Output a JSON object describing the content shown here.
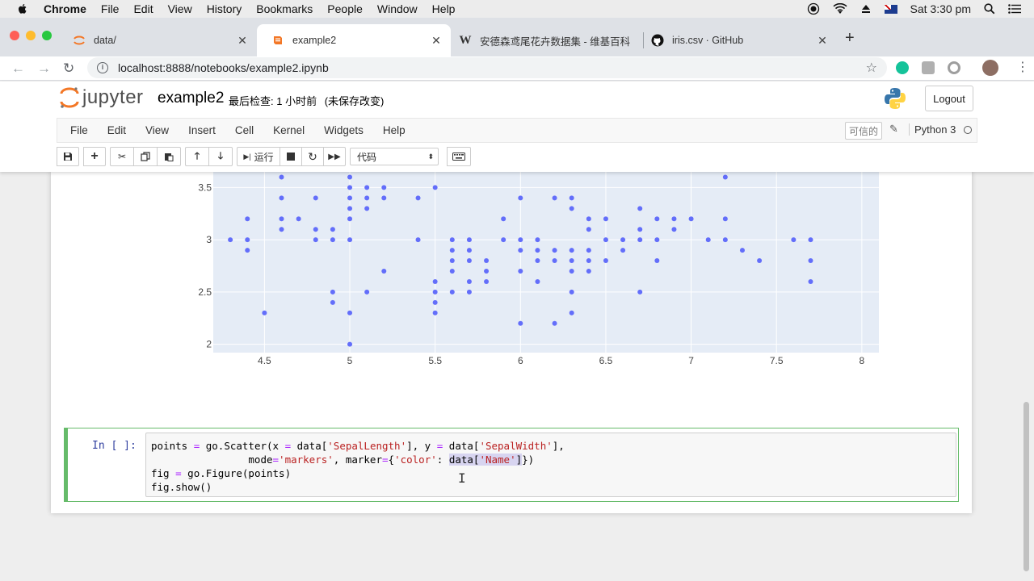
{
  "menubar": {
    "app": "Chrome",
    "items": [
      "File",
      "Edit",
      "View",
      "History",
      "Bookmarks",
      "People",
      "Window",
      "Help"
    ],
    "clock": "Sat 3:30 pm"
  },
  "tabs": [
    {
      "label": "data/",
      "icon": "jupyter-icon"
    },
    {
      "label": "example2",
      "icon": "notebook-icon",
      "active": true
    },
    {
      "label": "安德森鸢尾花卉数据集 - 维基百科",
      "icon": "wikipedia-icon"
    },
    {
      "label": "iris.csv · GitHub",
      "icon": "github-icon"
    }
  ],
  "address": {
    "url": "localhost:8888/notebooks/example2.ipynb"
  },
  "jupyter": {
    "logo_text": "jupyter",
    "notebook_name": "example2",
    "checkpoint": "最后检查: 1 小时前",
    "unsaved": "(未保存改变)",
    "logout": "Logout",
    "menu": [
      "File",
      "Edit",
      "View",
      "Insert",
      "Cell",
      "Kernel",
      "Widgets",
      "Help"
    ],
    "trusted": "可信的",
    "kernel": "Python 3",
    "run_label": "运行",
    "cell_type": "代码"
  },
  "chart_data": {
    "type": "scatter",
    "title": "",
    "xlabel": "",
    "ylabel": "",
    "xlim": [
      4.2,
      8.1
    ],
    "ylim": [
      1.92,
      3.65
    ],
    "x_ticks": [
      "4.5",
      "5",
      "5.5",
      "6",
      "6.5",
      "7",
      "7.5",
      "8"
    ],
    "y_ticks": [
      "2",
      "2.5",
      "3",
      "3.5"
    ],
    "x_tick_values": [
      4.5,
      5,
      5.5,
      6,
      6.5,
      7,
      7.5,
      8
    ],
    "y_tick_values": [
      2,
      2.5,
      3,
      3.5
    ],
    "grid": true,
    "marker_color": "#636efa",
    "points": [
      [
        4.3,
        3.0
      ],
      [
        4.4,
        3.2
      ],
      [
        4.4,
        3.0
      ],
      [
        4.4,
        2.9
      ],
      [
        4.5,
        2.3
      ],
      [
        4.6,
        3.6
      ],
      [
        4.6,
        3.4
      ],
      [
        4.6,
        3.2
      ],
      [
        4.6,
        3.1
      ],
      [
        4.7,
        3.2
      ],
      [
        4.8,
        3.4
      ],
      [
        4.8,
        3.1
      ],
      [
        4.8,
        3.0
      ],
      [
        4.9,
        3.1
      ],
      [
        4.9,
        3.0
      ],
      [
        4.9,
        2.5
      ],
      [
        4.9,
        2.4
      ],
      [
        5.0,
        3.6
      ],
      [
        5.0,
        3.5
      ],
      [
        5.0,
        3.4
      ],
      [
        5.0,
        3.3
      ],
      [
        5.0,
        3.2
      ],
      [
        5.0,
        3.0
      ],
      [
        5.0,
        2.3
      ],
      [
        5.0,
        2.0
      ],
      [
        5.1,
        3.5
      ],
      [
        5.1,
        3.4
      ],
      [
        5.1,
        3.3
      ],
      [
        5.1,
        2.5
      ],
      [
        5.2,
        3.5
      ],
      [
        5.2,
        3.4
      ],
      [
        5.2,
        2.7
      ],
      [
        5.4,
        3.4
      ],
      [
        5.4,
        3.0
      ],
      [
        5.5,
        3.5
      ],
      [
        5.5,
        2.6
      ],
      [
        5.5,
        2.5
      ],
      [
        5.5,
        2.4
      ],
      [
        5.5,
        2.3
      ],
      [
        5.6,
        3.0
      ],
      [
        5.6,
        2.9
      ],
      [
        5.6,
        2.8
      ],
      [
        5.6,
        2.7
      ],
      [
        5.6,
        2.5
      ],
      [
        5.7,
        3.0
      ],
      [
        5.7,
        2.9
      ],
      [
        5.7,
        2.8
      ],
      [
        5.7,
        2.6
      ],
      [
        5.7,
        2.5
      ],
      [
        5.8,
        2.8
      ],
      [
        5.8,
        2.7
      ],
      [
        5.8,
        2.6
      ],
      [
        5.9,
        3.2
      ],
      [
        5.9,
        3.0
      ],
      [
        6.0,
        3.4
      ],
      [
        6.0,
        3.0
      ],
      [
        6.0,
        2.9
      ],
      [
        6.0,
        2.7
      ],
      [
        6.0,
        2.2
      ],
      [
        6.1,
        3.0
      ],
      [
        6.1,
        2.9
      ],
      [
        6.1,
        2.8
      ],
      [
        6.1,
        2.6
      ],
      [
        6.2,
        3.4
      ],
      [
        6.2,
        2.9
      ],
      [
        6.2,
        2.8
      ],
      [
        6.2,
        2.2
      ],
      [
        6.3,
        3.4
      ],
      [
        6.3,
        3.3
      ],
      [
        6.3,
        2.9
      ],
      [
        6.3,
        2.8
      ],
      [
        6.3,
        2.7
      ],
      [
        6.3,
        2.5
      ],
      [
        6.3,
        2.3
      ],
      [
        6.4,
        3.2
      ],
      [
        6.4,
        3.1
      ],
      [
        6.4,
        2.9
      ],
      [
        6.4,
        2.8
      ],
      [
        6.4,
        2.7
      ],
      [
        6.5,
        3.2
      ],
      [
        6.5,
        3.0
      ],
      [
        6.5,
        2.8
      ],
      [
        6.6,
        3.0
      ],
      [
        6.6,
        2.9
      ],
      [
        6.7,
        3.3
      ],
      [
        6.7,
        3.1
      ],
      [
        6.7,
        3.0
      ],
      [
        6.7,
        2.5
      ],
      [
        6.8,
        3.2
      ],
      [
        6.8,
        3.0
      ],
      [
        6.8,
        2.8
      ],
      [
        6.9,
        3.2
      ],
      [
        6.9,
        3.1
      ],
      [
        7.0,
        3.2
      ],
      [
        7.1,
        3.0
      ],
      [
        7.2,
        3.6
      ],
      [
        7.2,
        3.2
      ],
      [
        7.2,
        3.0
      ],
      [
        7.3,
        2.9
      ],
      [
        7.4,
        2.8
      ],
      [
        7.6,
        3.0
      ],
      [
        7.7,
        3.0
      ],
      [
        7.7,
        2.8
      ],
      [
        7.7,
        2.6
      ]
    ]
  },
  "cell": {
    "prompt": "In [ ]:",
    "code": {
      "l1_a": "points ",
      "l1_b": "=",
      "l1_c": " go.Scatter(x ",
      "l1_d": "=",
      "l1_e": " data[",
      "l1_f": "'SepalLength'",
      "l1_g": "], y ",
      "l1_h": "=",
      "l1_i": " data[",
      "l1_j": "'SepalWidth'",
      "l1_k": "],",
      "l2_a": "                mode",
      "l2_b": "=",
      "l2_c": "'markers'",
      "l2_d": ", marker",
      "l2_e": "=",
      "l2_f": "{",
      "l2_g": "'color'",
      "l2_h": ": ",
      "l2_i": "data[",
      "l2_j": "'Name'",
      "l2_k": "]",
      "l2_l": "})",
      "l3_a": "fig ",
      "l3_b": "=",
      "l3_c": " go.Figure(points)",
      "l4": "fig.show()"
    }
  }
}
